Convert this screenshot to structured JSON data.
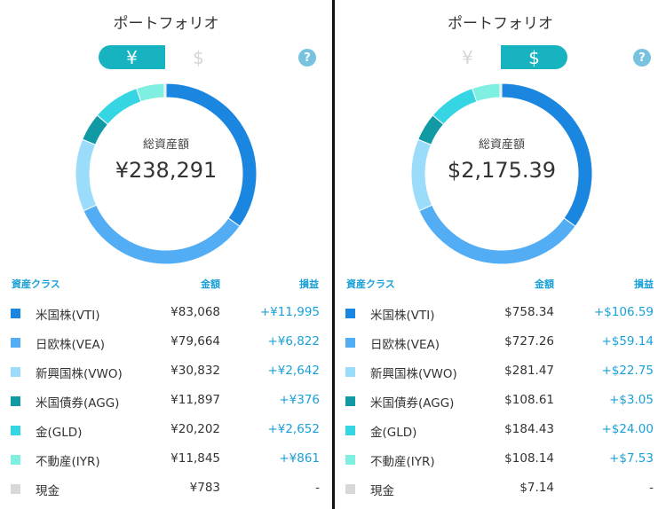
{
  "colors": {
    "accent": "#17b3c1",
    "header_text": "#1aa0d8",
    "gain_positive": "#1aa0d8",
    "help_icon": "#77c3df",
    "inactive_toggle": "#d6d6d6"
  },
  "panels": [
    {
      "title": "ポートフォリオ",
      "toggle": {
        "left_label": "¥",
        "right_label": "$",
        "active": "left"
      },
      "help_icon": "question-circle-icon",
      "total_label": "総資産額",
      "total_value": "¥238,291",
      "headers": {
        "asset_class": "資産クラス",
        "amount": "金額",
        "gain": "損益"
      },
      "rows": [
        {
          "name": "米国株(VTI)",
          "amount": "¥83,068",
          "gain": "+¥11,995",
          "color": "#1b86e0"
        },
        {
          "name": "日欧株(VEA)",
          "amount": "¥79,664",
          "gain": "+¥6,822",
          "color": "#52adf5"
        },
        {
          "name": "新興国株(VWO)",
          "amount": "¥30,832",
          "gain": "+¥2,642",
          "color": "#9bdcfb"
        },
        {
          "name": "米国債券(AGG)",
          "amount": "¥11,897",
          "gain": "+¥376",
          "color": "#119aa3"
        },
        {
          "name": "金(GLD)",
          "amount": "¥20,202",
          "gain": "+¥2,652",
          "color": "#36d5e4"
        },
        {
          "name": "不動産(IYR)",
          "amount": "¥11,845",
          "gain": "+¥861",
          "color": "#7eefe1"
        },
        {
          "name": "現金",
          "amount": "¥783",
          "gain": "-",
          "color": "#d8d8d8"
        }
      ]
    },
    {
      "title": "ポートフォリオ",
      "toggle": {
        "left_label": "¥",
        "right_label": "$",
        "active": "right"
      },
      "help_icon": "question-circle-icon",
      "total_label": "総資産額",
      "total_value": "$2,175.39",
      "headers": {
        "asset_class": "資産クラス",
        "amount": "金額",
        "gain": "損益"
      },
      "rows": [
        {
          "name": "米国株(VTI)",
          "amount": "$758.34",
          "gain": "+$106.59",
          "color": "#1b86e0"
        },
        {
          "name": "日欧株(VEA)",
          "amount": "$727.26",
          "gain": "+$59.14",
          "color": "#52adf5"
        },
        {
          "name": "新興国株(VWO)",
          "amount": "$281.47",
          "gain": "+$22.75",
          "color": "#9bdcfb"
        },
        {
          "name": "米国債券(AGG)",
          "amount": "$108.61",
          "gain": "+$3.05",
          "color": "#119aa3"
        },
        {
          "name": "金(GLD)",
          "amount": "$184.43",
          "gain": "+$24.00",
          "color": "#36d5e4"
        },
        {
          "name": "不動産(IYR)",
          "amount": "$108.14",
          "gain": "+$7.53",
          "color": "#7eefe1"
        },
        {
          "name": "現金",
          "amount": "$7.14",
          "gain": "-",
          "color": "#d8d8d8"
        }
      ]
    }
  ]
}
